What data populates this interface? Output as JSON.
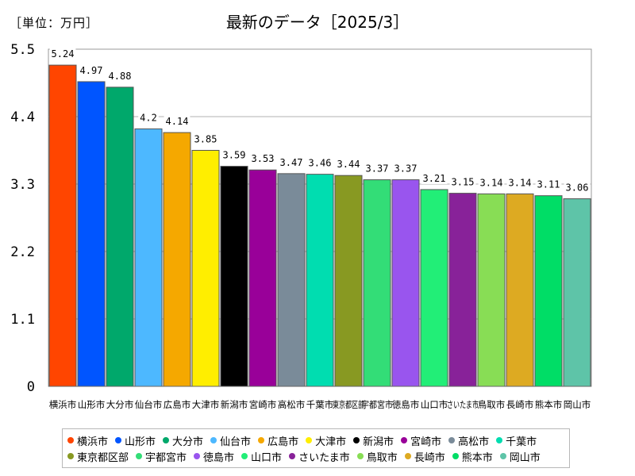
{
  "chart_data": {
    "type": "bar",
    "title": "最新のデータ［2025/3］",
    "unit_label": "［単位：万円］",
    "ylim": [
      0,
      5.5
    ],
    "yticks": [
      "0",
      "1.1",
      "2.2",
      "3.3",
      "4.4",
      "5.5"
    ],
    "grid": true,
    "categories": [
      "横浜市",
      "山形市",
      "大分市",
      "仙台市",
      "広島市",
      "大津市",
      "新潟市",
      "宮崎市",
      "高松市",
      "千葉市",
      "東京都区部",
      "宇都宮市",
      "徳島市",
      "山口市",
      "さいたま市",
      "鳥取市",
      "長崎市",
      "熊本市",
      "岡山市"
    ],
    "values": [
      5.24,
      4.97,
      4.88,
      4.2,
      4.14,
      3.85,
      3.59,
      3.53,
      3.47,
      3.46,
      3.44,
      3.37,
      3.37,
      3.21,
      3.15,
      3.14,
      3.14,
      3.11,
      3.06
    ],
    "value_labels": [
      "5.24",
      "4.97",
      "4.88",
      "4.2",
      "4.14",
      "3.85",
      "3.59",
      "3.53",
      "3.47",
      "3.46",
      "3.44",
      "3.37",
      "3.37",
      "3.21",
      "3.15",
      "3.14",
      "3.14",
      "3.11",
      "3.06"
    ],
    "colors": [
      "#ff4500",
      "#0055ff",
      "#00a86b",
      "#4db8ff",
      "#f5a800",
      "#ffee00",
      "#000000",
      "#990099",
      "#7a8b99",
      "#00ddb0",
      "#889922",
      "#33dd77",
      "#9955ee",
      "#22ee77",
      "#882299",
      "#88dd55",
      "#ddaa22",
      "#00dd66",
      "#5ec4a8"
    ],
    "legend_position": "bottom"
  }
}
